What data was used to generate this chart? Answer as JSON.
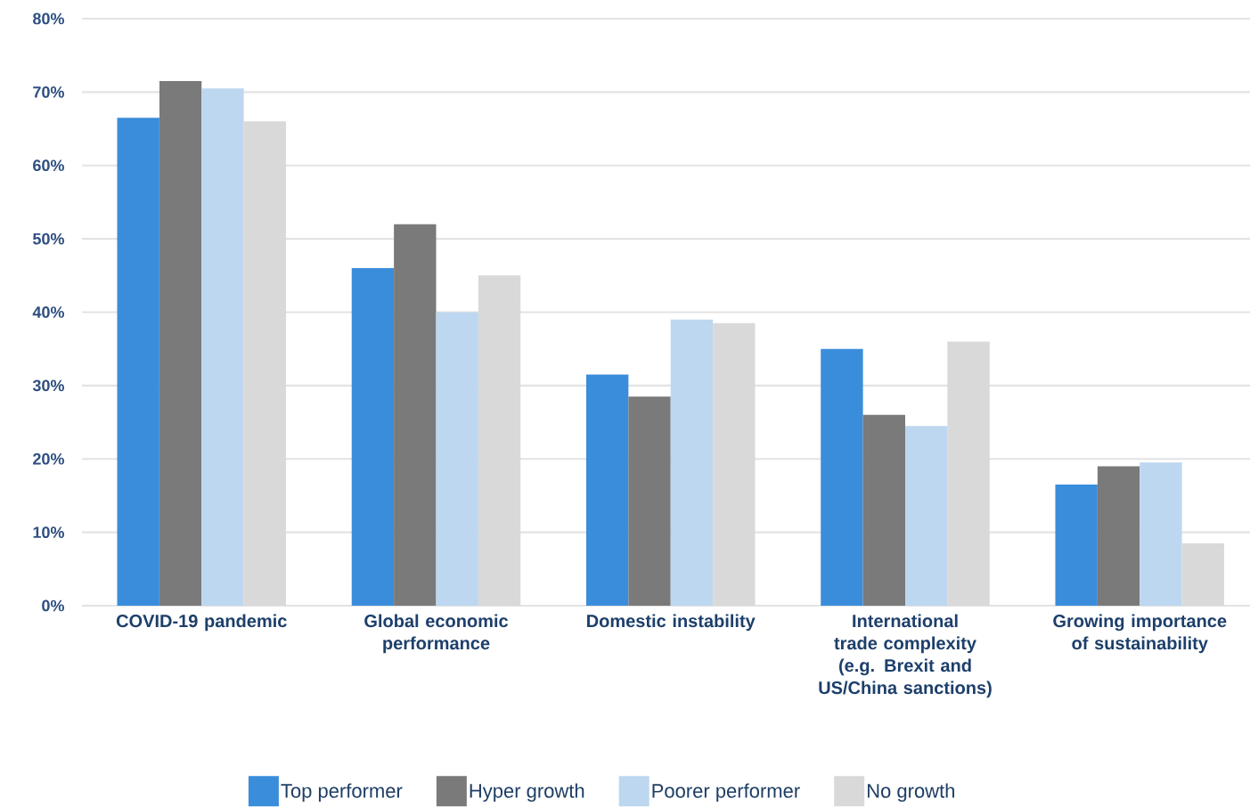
{
  "chart_data": {
    "type": "bar",
    "categories": [
      "COVID-19 pandemic",
      "Global economic performance",
      "Domestic instability",
      "International trade complexity (e.g. Brexit and US/China sanctions)",
      "Growing importance of sustainability"
    ],
    "series": [
      {
        "name": "Top performer",
        "color": "#3a8ddb",
        "values": [
          66.5,
          46,
          31.5,
          35,
          16.5
        ]
      },
      {
        "name": "Hyper growth",
        "color": "#7a7a7a",
        "values": [
          71.5,
          52,
          28.5,
          26,
          19
        ]
      },
      {
        "name": "Poorer performer",
        "color": "#bdd7f0",
        "values": [
          70.5,
          40,
          39,
          24.5,
          19.5
        ]
      },
      {
        "name": "No growth",
        "color": "#d9d9d9",
        "values": [
          66,
          45,
          38.5,
          36,
          8.5
        ]
      }
    ],
    "ylim": [
      0,
      80
    ],
    "yticks": [
      {
        "value": 0,
        "label": "0%"
      },
      {
        "value": 10,
        "label": "10%"
      },
      {
        "value": 20,
        "label": "20%"
      },
      {
        "value": 30,
        "label": "30%"
      },
      {
        "value": 40,
        "label": "40%"
      },
      {
        "value": 50,
        "label": "50%"
      },
      {
        "value": 60,
        "label": "60%"
      },
      {
        "value": 70,
        "label": "70%"
      },
      {
        "value": 80,
        "label": "80%"
      }
    ],
    "grid": "y",
    "legend": "bottom"
  }
}
